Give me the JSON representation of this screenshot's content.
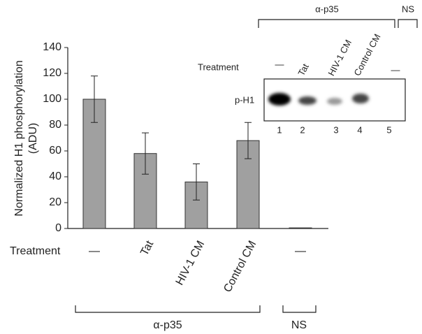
{
  "chart_data": {
    "type": "bar",
    "ylabel": "Normalized H1 phosphorylation",
    "ylabel_unit": "(ADU)",
    "x_title": "Treatment",
    "categories": [
      "—",
      "Tat",
      "HIV-1 CM",
      "Control CM",
      "—"
    ],
    "values": [
      100,
      58,
      36,
      68,
      0.5
    ],
    "errors": [
      18,
      16,
      14,
      14,
      0
    ],
    "color": "#a0a0a0",
    "ylim": [
      0,
      140
    ],
    "yticks": [
      0,
      20,
      40,
      60,
      80,
      100,
      120,
      140
    ],
    "group_labels": [
      "α-p35",
      "NS"
    ]
  },
  "inset": {
    "row_title": "Treatment",
    "band_label": "p-H1",
    "lane_treatments": [
      "—",
      "Tat",
      "HIV-1 CM",
      "Control CM",
      "—"
    ],
    "lanes": [
      "1",
      "2",
      "3",
      "4",
      "5"
    ],
    "group_labels": [
      "α-p35",
      "NS"
    ]
  }
}
